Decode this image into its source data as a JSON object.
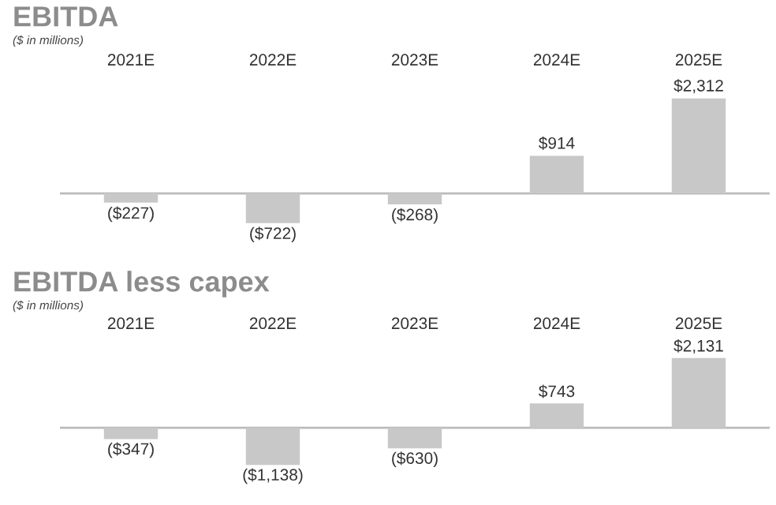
{
  "chart_data": [
    {
      "type": "bar",
      "title": "EBITDA",
      "subtitle": "($ in millions)",
      "categories": [
        "2021E",
        "2022E",
        "2023E",
        "2024E",
        "2025E"
      ],
      "values": [
        -227,
        -722,
        -268,
        914,
        2312
      ],
      "value_labels": [
        "($227)",
        "($722)",
        "($268)",
        "$914",
        "$2,312"
      ],
      "color": "#c8c8c8"
    },
    {
      "type": "bar",
      "title": "EBITDA less capex",
      "subtitle": "($ in millions)",
      "categories": [
        "2021E",
        "2022E",
        "2023E",
        "2024E",
        "2025E"
      ],
      "values": [
        -347,
        -1138,
        -630,
        743,
        2131
      ],
      "value_labels": [
        "($347)",
        "($1,138)",
        "($630)",
        "$743",
        "$2,131"
      ],
      "color": "#c8c8c8"
    }
  ]
}
